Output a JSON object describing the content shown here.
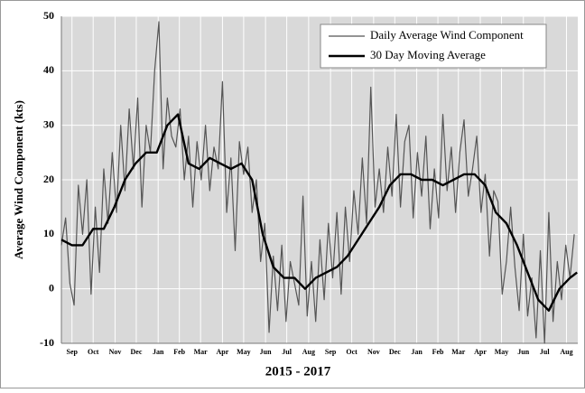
{
  "chart_data": {
    "type": "line",
    "x_label": "2015 - 2017",
    "y_label": "Average Wind Component (kts)",
    "xlim": [
      0,
      731
    ],
    "ylim": [
      -10,
      50
    ],
    "yticks": [
      -10,
      0,
      10,
      20,
      30,
      40,
      50
    ],
    "xticks": [
      {
        "value": 15,
        "label": "Sep"
      },
      {
        "value": 45,
        "label": "Oct"
      },
      {
        "value": 76,
        "label": "Nov"
      },
      {
        "value": 106,
        "label": "Dec"
      },
      {
        "value": 137,
        "label": "Jan"
      },
      {
        "value": 167,
        "label": "Feb"
      },
      {
        "value": 197,
        "label": "Mar"
      },
      {
        "value": 228,
        "label": "Apr"
      },
      {
        "value": 258,
        "label": "May"
      },
      {
        "value": 289,
        "label": "Jun"
      },
      {
        "value": 319,
        "label": "Jul"
      },
      {
        "value": 350,
        "label": "Aug"
      },
      {
        "value": 381,
        "label": "Sep"
      },
      {
        "value": 411,
        "label": "Oct"
      },
      {
        "value": 442,
        "label": "Nov"
      },
      {
        "value": 472,
        "label": "Dec"
      },
      {
        "value": 503,
        "label": "Jan"
      },
      {
        "value": 533,
        "label": "Feb"
      },
      {
        "value": 562,
        "label": "Mar"
      },
      {
        "value": 593,
        "label": "Apr"
      },
      {
        "value": 623,
        "label": "May"
      },
      {
        "value": 654,
        "label": "Jun"
      },
      {
        "value": 684,
        "label": "Jul"
      },
      {
        "value": 715,
        "label": "Aug"
      }
    ],
    "grid": true,
    "legend": "top-right",
    "series": [
      {
        "name": "Daily Average Wind Component",
        "color": "#555555",
        "width": 1.2,
        "x": [
          0,
          6,
          12,
          18,
          24,
          30,
          36,
          42,
          48,
          54,
          60,
          66,
          72,
          78,
          84,
          90,
          96,
          102,
          108,
          114,
          120,
          126,
          132,
          138,
          144,
          150,
          156,
          162,
          168,
          174,
          180,
          186,
          192,
          198,
          204,
          210,
          216,
          222,
          228,
          234,
          240,
          246,
          252,
          258,
          264,
          270,
          276,
          282,
          288,
          294,
          300,
          306,
          312,
          318,
          324,
          330,
          336,
          342,
          348,
          354,
          360,
          366,
          372,
          378,
          384,
          390,
          396,
          402,
          408,
          414,
          420,
          426,
          432,
          438,
          444,
          450,
          456,
          462,
          468,
          474,
          480,
          486,
          492,
          498,
          504,
          510,
          516,
          522,
          528,
          534,
          540,
          546,
          552,
          558,
          564,
          570,
          576,
          582,
          588,
          594,
          600,
          606,
          612,
          618,
          624,
          630,
          636,
          642,
          648,
          654,
          660,
          666,
          672,
          678,
          684,
          690,
          696,
          702,
          708,
          714,
          720,
          726
        ],
        "values": [
          8,
          13,
          1,
          -3,
          19,
          10,
          20,
          -1,
          15,
          3,
          22,
          12,
          25,
          14,
          30,
          18,
          33,
          22,
          35,
          15,
          30,
          25,
          40,
          49,
          22,
          35,
          28,
          26,
          33,
          20,
          28,
          15,
          27,
          20,
          30,
          18,
          26,
          22,
          38,
          14,
          24,
          7,
          27,
          21,
          26,
          14,
          20,
          5,
          12,
          -8,
          6,
          -4,
          8,
          -6,
          5,
          1,
          -3,
          17,
          -5,
          5,
          -6,
          9,
          -2,
          12,
          2,
          14,
          -1,
          15,
          5,
          18,
          10,
          24,
          12,
          37,
          15,
          22,
          14,
          26,
          17,
          32,
          15,
          27,
          30,
          13,
          25,
          17,
          28,
          11,
          22,
          13,
          32,
          18,
          26,
          14,
          25,
          31,
          17,
          22,
          28,
          14,
          21,
          6,
          18,
          16,
          -1,
          5,
          15,
          4,
          -4,
          10,
          -5,
          2,
          -9,
          7,
          -10,
          14,
          -6,
          5,
          -2,
          8,
          2,
          10
        ]
      },
      {
        "name": "30 Day Moving Average",
        "color": "#000000",
        "width": 2.4,
        "x": [
          0,
          15,
          30,
          45,
          60,
          75,
          90,
          105,
          120,
          135,
          150,
          165,
          180,
          195,
          210,
          225,
          240,
          255,
          270,
          285,
          300,
          315,
          330,
          345,
          360,
          375,
          390,
          405,
          420,
          435,
          450,
          465,
          480,
          495,
          510,
          525,
          540,
          555,
          570,
          585,
          600,
          615,
          630,
          645,
          660,
          675,
          690,
          705,
          720,
          730
        ],
        "values": [
          9,
          8,
          8,
          11,
          11,
          15,
          20,
          23,
          25,
          25,
          30,
          32,
          23,
          22,
          24,
          23,
          22,
          23,
          20,
          10,
          4,
          2,
          2,
          0,
          2,
          3,
          4,
          6,
          9,
          12,
          15,
          19,
          21,
          21,
          20,
          20,
          19,
          20,
          21,
          21,
          19,
          14,
          12,
          8,
          3,
          -2,
          -4,
          0,
          2,
          3
        ]
      }
    ]
  }
}
